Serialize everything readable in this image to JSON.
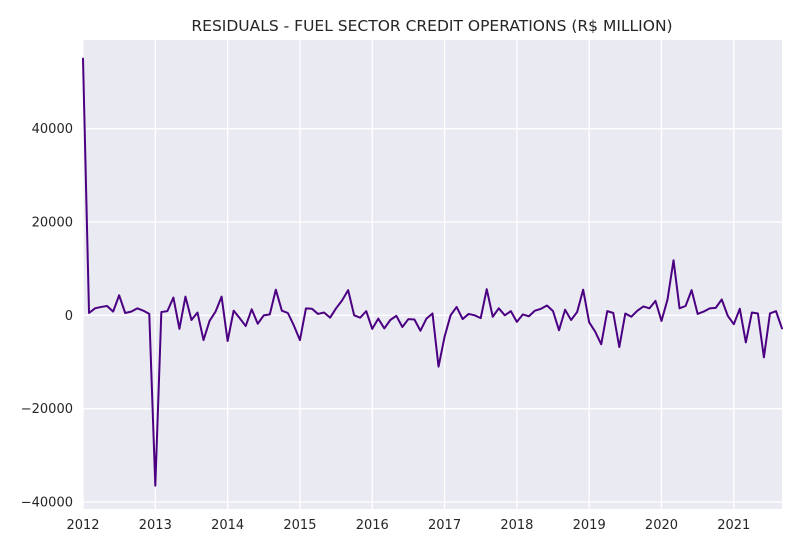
{
  "chart_data": {
    "type": "line",
    "title": "RESIDUALS - FUEL SECTOR CREDIT OPERATIONS (R$ MILLION)",
    "xlabel": "",
    "ylabel": "",
    "xlim": [
      "2012-01",
      "2021-09"
    ],
    "ylim": [
      -41500,
      59000
    ],
    "x_ticks": [
      "2012",
      "2013",
      "2014",
      "2015",
      "2016",
      "2017",
      "2018",
      "2019",
      "2020",
      "2021"
    ],
    "y_ticks": [
      -40000,
      -20000,
      0,
      20000,
      40000
    ],
    "grid": true,
    "series_color": "#4b0082",
    "x_start": "2012-01",
    "series": [
      {
        "values": [
          55000,
          500,
          1500,
          1800,
          2000,
          800,
          4300,
          500,
          800,
          1500,
          1000,
          300,
          -36500,
          700,
          900,
          3800,
          -2900,
          4000,
          -1000,
          600,
          -5300,
          -1200,
          800,
          4000,
          -5500,
          1000,
          -600,
          -2300,
          1300,
          -1800,
          0,
          200,
          5500,
          1000,
          500,
          -2200,
          -5300,
          1500,
          1400,
          300,
          600,
          -500,
          1500,
          3200,
          5400,
          0,
          -500,
          900,
          -2900,
          -700,
          -2800,
          -1000,
          -100,
          -2500,
          -800,
          -900,
          -3300,
          -700,
          400,
          -11000,
          -4600,
          0,
          1800,
          -800,
          300,
          0,
          -600,
          5600,
          -300,
          1500,
          0,
          900,
          -1400,
          200,
          -200,
          1000,
          1400,
          2100,
          900,
          -3200,
          1200,
          -1000,
          700,
          5500,
          -1500,
          -3500,
          -6200,
          900,
          500,
          -6800,
          400,
          -300,
          1000,
          1900,
          1500,
          3100,
          -1200,
          3400,
          11800,
          1500,
          2000,
          5400,
          300,
          800,
          1500,
          1600,
          3400,
          -100,
          -1900,
          1400,
          -5800,
          600,
          400,
          -9000,
          400,
          900,
          -2800
        ]
      }
    ]
  }
}
